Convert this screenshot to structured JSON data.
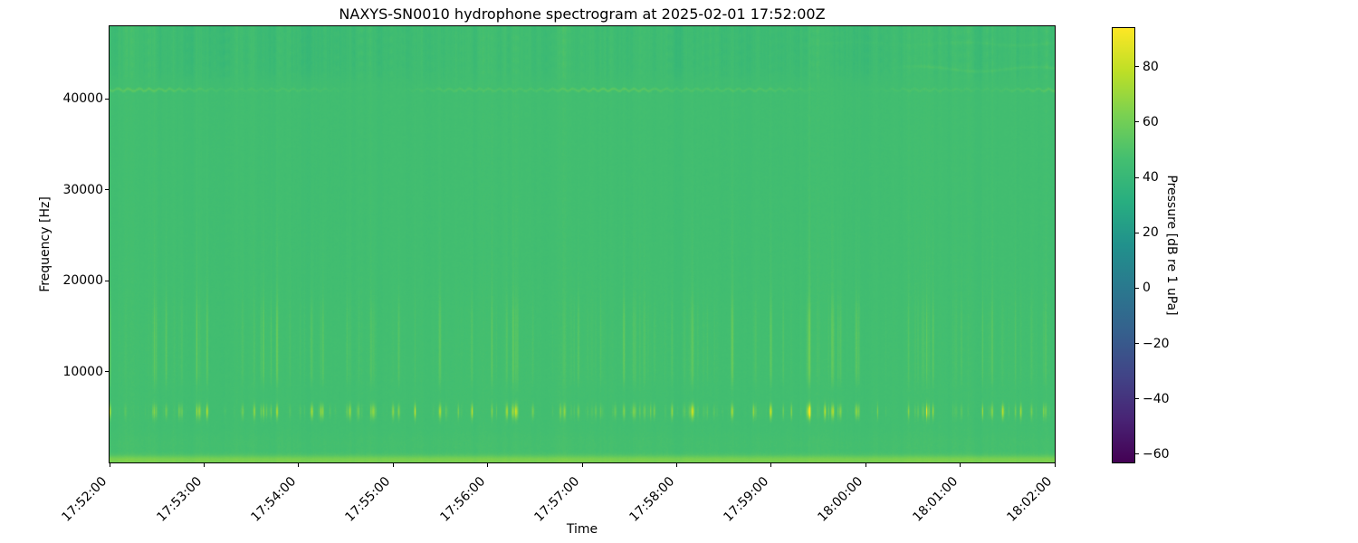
{
  "chart_data": {
    "type": "heatmap",
    "title": "NAXYS-SN0010 hydrophone spectrogram at 2025-02-01 17:52:00Z",
    "xlabel": "Time",
    "ylabel": "Frequency [Hz]",
    "x_tick_labels": [
      "17:52:00",
      "17:53:00",
      "17:54:00",
      "17:55:00",
      "17:56:00",
      "17:57:00",
      "17:58:00",
      "17:59:00",
      "18:00:00",
      "18:01:00",
      "18:02:00"
    ],
    "y_tick_values": [
      10000,
      20000,
      30000,
      40000
    ],
    "y_tick_labels": [
      "10000",
      "20000",
      "30000",
      "40000"
    ],
    "freq_range_hz": [
      0,
      48000
    ],
    "time_span_seconds": 600,
    "grid": false,
    "colorbar": {
      "label": "Pressure [dB re 1 uPa]",
      "tick_values": [
        80,
        60,
        40,
        20,
        0,
        -20,
        -40,
        -60
      ],
      "tick_labels": [
        "80",
        "60",
        "40",
        "20",
        "0",
        "−20",
        "−40",
        "−60"
      ],
      "vmin": -63,
      "vmax": 94,
      "colormap": "viridis",
      "viridis_stops": [
        "#440154",
        "#482475",
        "#414487",
        "#35608d",
        "#2a788e",
        "#21918c",
        "#28ae80",
        "#44bf70",
        "#7ad151",
        "#bddf26",
        "#fde725"
      ]
    },
    "texture": {
      "background_db": 45.8,
      "n_events": 240,
      "click_center_hz": 5600,
      "click_sigma_hz": 520,
      "click_peak_db_above_bg": 32,
      "mid_band_hz": [
        8800,
        17300
      ],
      "upper_band_hz": [
        17200,
        26500
      ],
      "bottom_center_hz": 250,
      "bottom_sigma_hz": 360,
      "bottom_band_db_above_bg": 17,
      "low_band_hz": 1900,
      "tonal_hz": 41050,
      "tonal_db_above_bg": 7,
      "top_mottle_above_hz": 42400,
      "squiggle1_hz": 46200,
      "squiggle2_hz": 43450
    }
  }
}
